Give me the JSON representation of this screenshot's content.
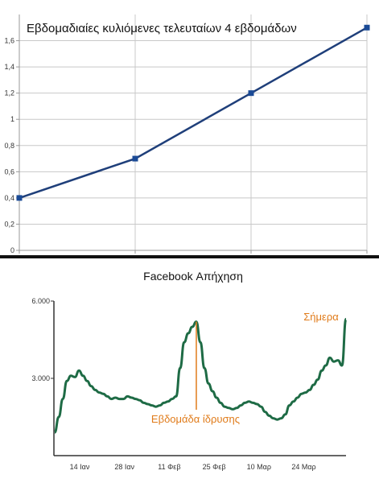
{
  "chart_data": [
    {
      "type": "line",
      "title": "Εβδομαδιαίες κυλιόμενες τελευταίων 4 εβδομάδων",
      "x": [
        1,
        2,
        3,
        4
      ],
      "series": [
        {
          "values": [
            0.4,
            0.7,
            1.2,
            1.7
          ]
        }
      ],
      "yticks": [
        "0",
        "0,2",
        "0,4",
        "0,6",
        "0,8",
        "1",
        "1,2",
        "1,4",
        "1,6"
      ],
      "ylim": [
        0,
        1.8
      ],
      "grid": true,
      "colors": {
        "line": "#1f3f7a",
        "marker": "#1a4a96",
        "grid": "#c8c8c8"
      }
    },
    {
      "type": "line",
      "title": "Facebook Απήχηση",
      "xlabels": [
        "14 Ιαν",
        "28 Ιαν",
        "11 Φεβ",
        "25 Φεβ",
        "10 Μαρ",
        "24 Μαρ"
      ],
      "ytick_labels": [
        "3.000",
        "6.000"
      ],
      "yticks": [
        3000,
        6000
      ],
      "ylim": [
        0,
        6000
      ],
      "series": [
        {
          "values": [
            900,
            1500,
            2200,
            2900,
            3100,
            3050,
            3300,
            3100,
            2900,
            2700,
            2550,
            2450,
            2400,
            2300,
            2200,
            2250,
            2200,
            2200,
            2300,
            2250,
            2200,
            2150,
            2050,
            2000,
            1950,
            1900,
            1950,
            2050,
            2100,
            2200,
            2300,
            3400,
            4400,
            4750,
            5000,
            5200,
            4400,
            3400,
            2800,
            2500,
            2250,
            2050,
            1900,
            1850,
            1800,
            1850,
            1950,
            2050,
            2100,
            2050,
            2000,
            1900,
            1700,
            1550,
            1450,
            1400,
            1450,
            1600,
            1950,
            2100,
            2250,
            2400,
            2450,
            2550,
            2750,
            2950,
            3300,
            3500,
            3800,
            3650,
            3700,
            3500,
            5300
          ]
        }
      ],
      "annotations": {
        "peak_label": "Εβδομάδα ίδρυσης",
        "today_label": "Σήμερα"
      },
      "colors": {
        "line": "#1e6b45",
        "annotation": "#e07b1a",
        "axis": "#333333"
      }
    }
  ]
}
